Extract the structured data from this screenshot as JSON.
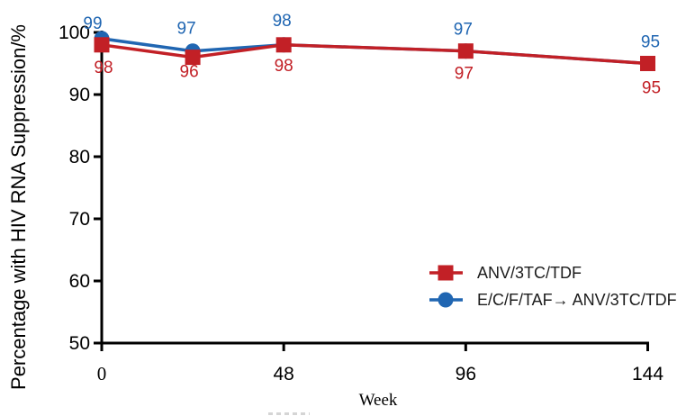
{
  "figure": {
    "background": "#ffffff",
    "axis_color": "#000000"
  },
  "chart_data": {
    "type": "line",
    "title": "",
    "xlabel": "Week",
    "ylabel": "Percentage with HIV RNA Suppression/%",
    "xlim": [
      0,
      144
    ],
    "ylim": [
      50,
      100
    ],
    "grid": false,
    "x": [
      0,
      24,
      48,
      96,
      144
    ],
    "x_tick_values": [
      0,
      48,
      96,
      144
    ],
    "x_tick_labels": [
      "0",
      "48",
      "96",
      "144"
    ],
    "y_tick_values": [
      50,
      60,
      70,
      80,
      90,
      100
    ],
    "y_tick_labels": [
      "50",
      "60",
      "70",
      "80",
      "90",
      "100"
    ],
    "series": [
      {
        "name": "E/C/F/TAF→ ANV/3TC/TDF",
        "marker": "circle",
        "color": "#2066b2",
        "values": [
          99,
          97,
          98,
          97,
          95
        ],
        "point_labels": [
          "99",
          "97",
          "98",
          "97",
          "95"
        ],
        "label_position": "above"
      },
      {
        "name": "ANV/3TC/TDF",
        "marker": "square",
        "color": "#c22026",
        "values": [
          98,
          96,
          98,
          97,
          95
        ],
        "point_labels": [
          "98",
          "96",
          "98",
          "97",
          "95"
        ],
        "label_position": "below"
      }
    ],
    "legend_position": "inside-right",
    "legend": [
      {
        "label": "ANV/3TC/TDF",
        "marker": "square",
        "color": "#c22026"
      },
      {
        "label": "E/C/F/TAF→ ANV/3TC/TDF",
        "marker": "circle",
        "color": "#2066b2"
      }
    ],
    "legend_text_color": "#1c1c1c"
  }
}
